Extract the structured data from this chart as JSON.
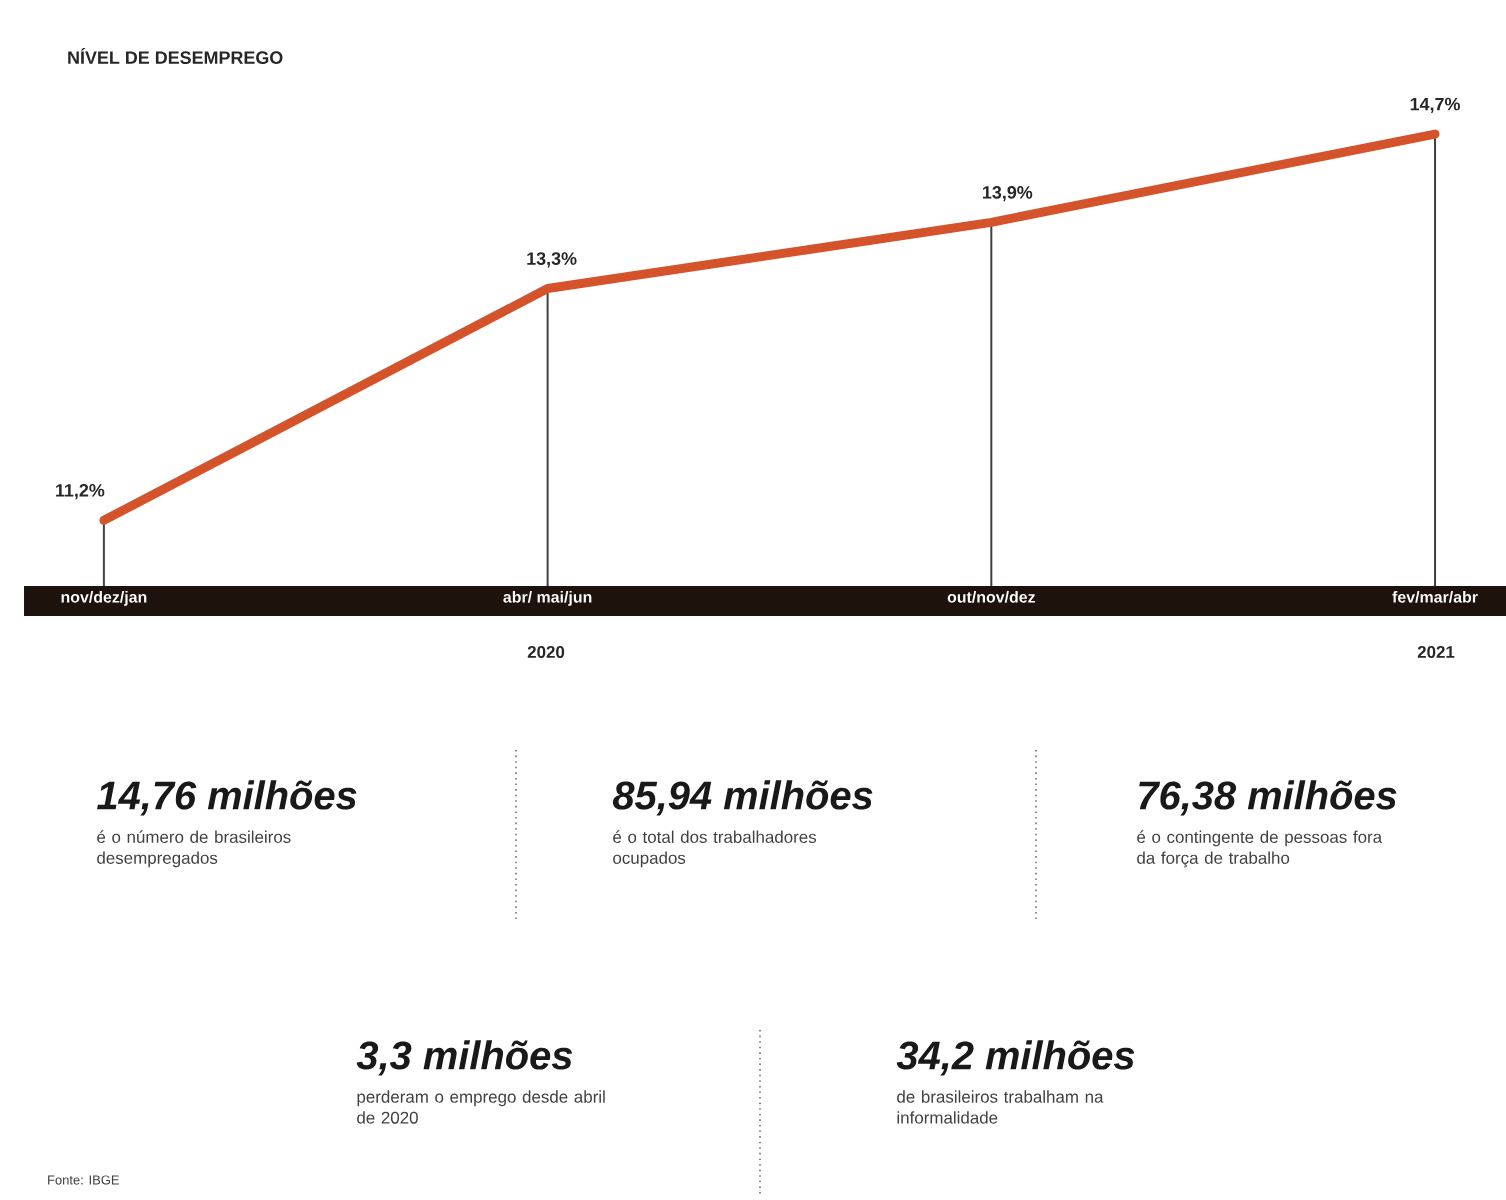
{
  "chart_data": {
    "type": "line",
    "title": "NÍVEL DE DESEMPREGO",
    "categories": [
      "nov/dez/jan",
      "abr/ mai/jun",
      "out/nov/dez",
      "fev/mar/abr"
    ],
    "values": [
      11.2,
      13.3,
      13.9,
      14.7
    ],
    "color": "#d4532b",
    "grid": "x",
    "value_labels": [
      "11,2%",
      "13,3%",
      "13,9%",
      "14,7%"
    ],
    "annotations": [
      "2020",
      "2021",
      "14,76 milhões",
      "é o número de brasileiros desempregados",
      "85,94 milhões",
      "é o total dos trabalhadores ocupados",
      "76,38 milhões",
      "é o contingente de pessoas fora da força de trabalho",
      "3,3 milhões",
      "perderam o emprego desde abril de 2020",
      "34,2 milhões",
      "de brasileiros trabalham na informalidade",
      "Fonte: IBGE"
    ]
  }
}
